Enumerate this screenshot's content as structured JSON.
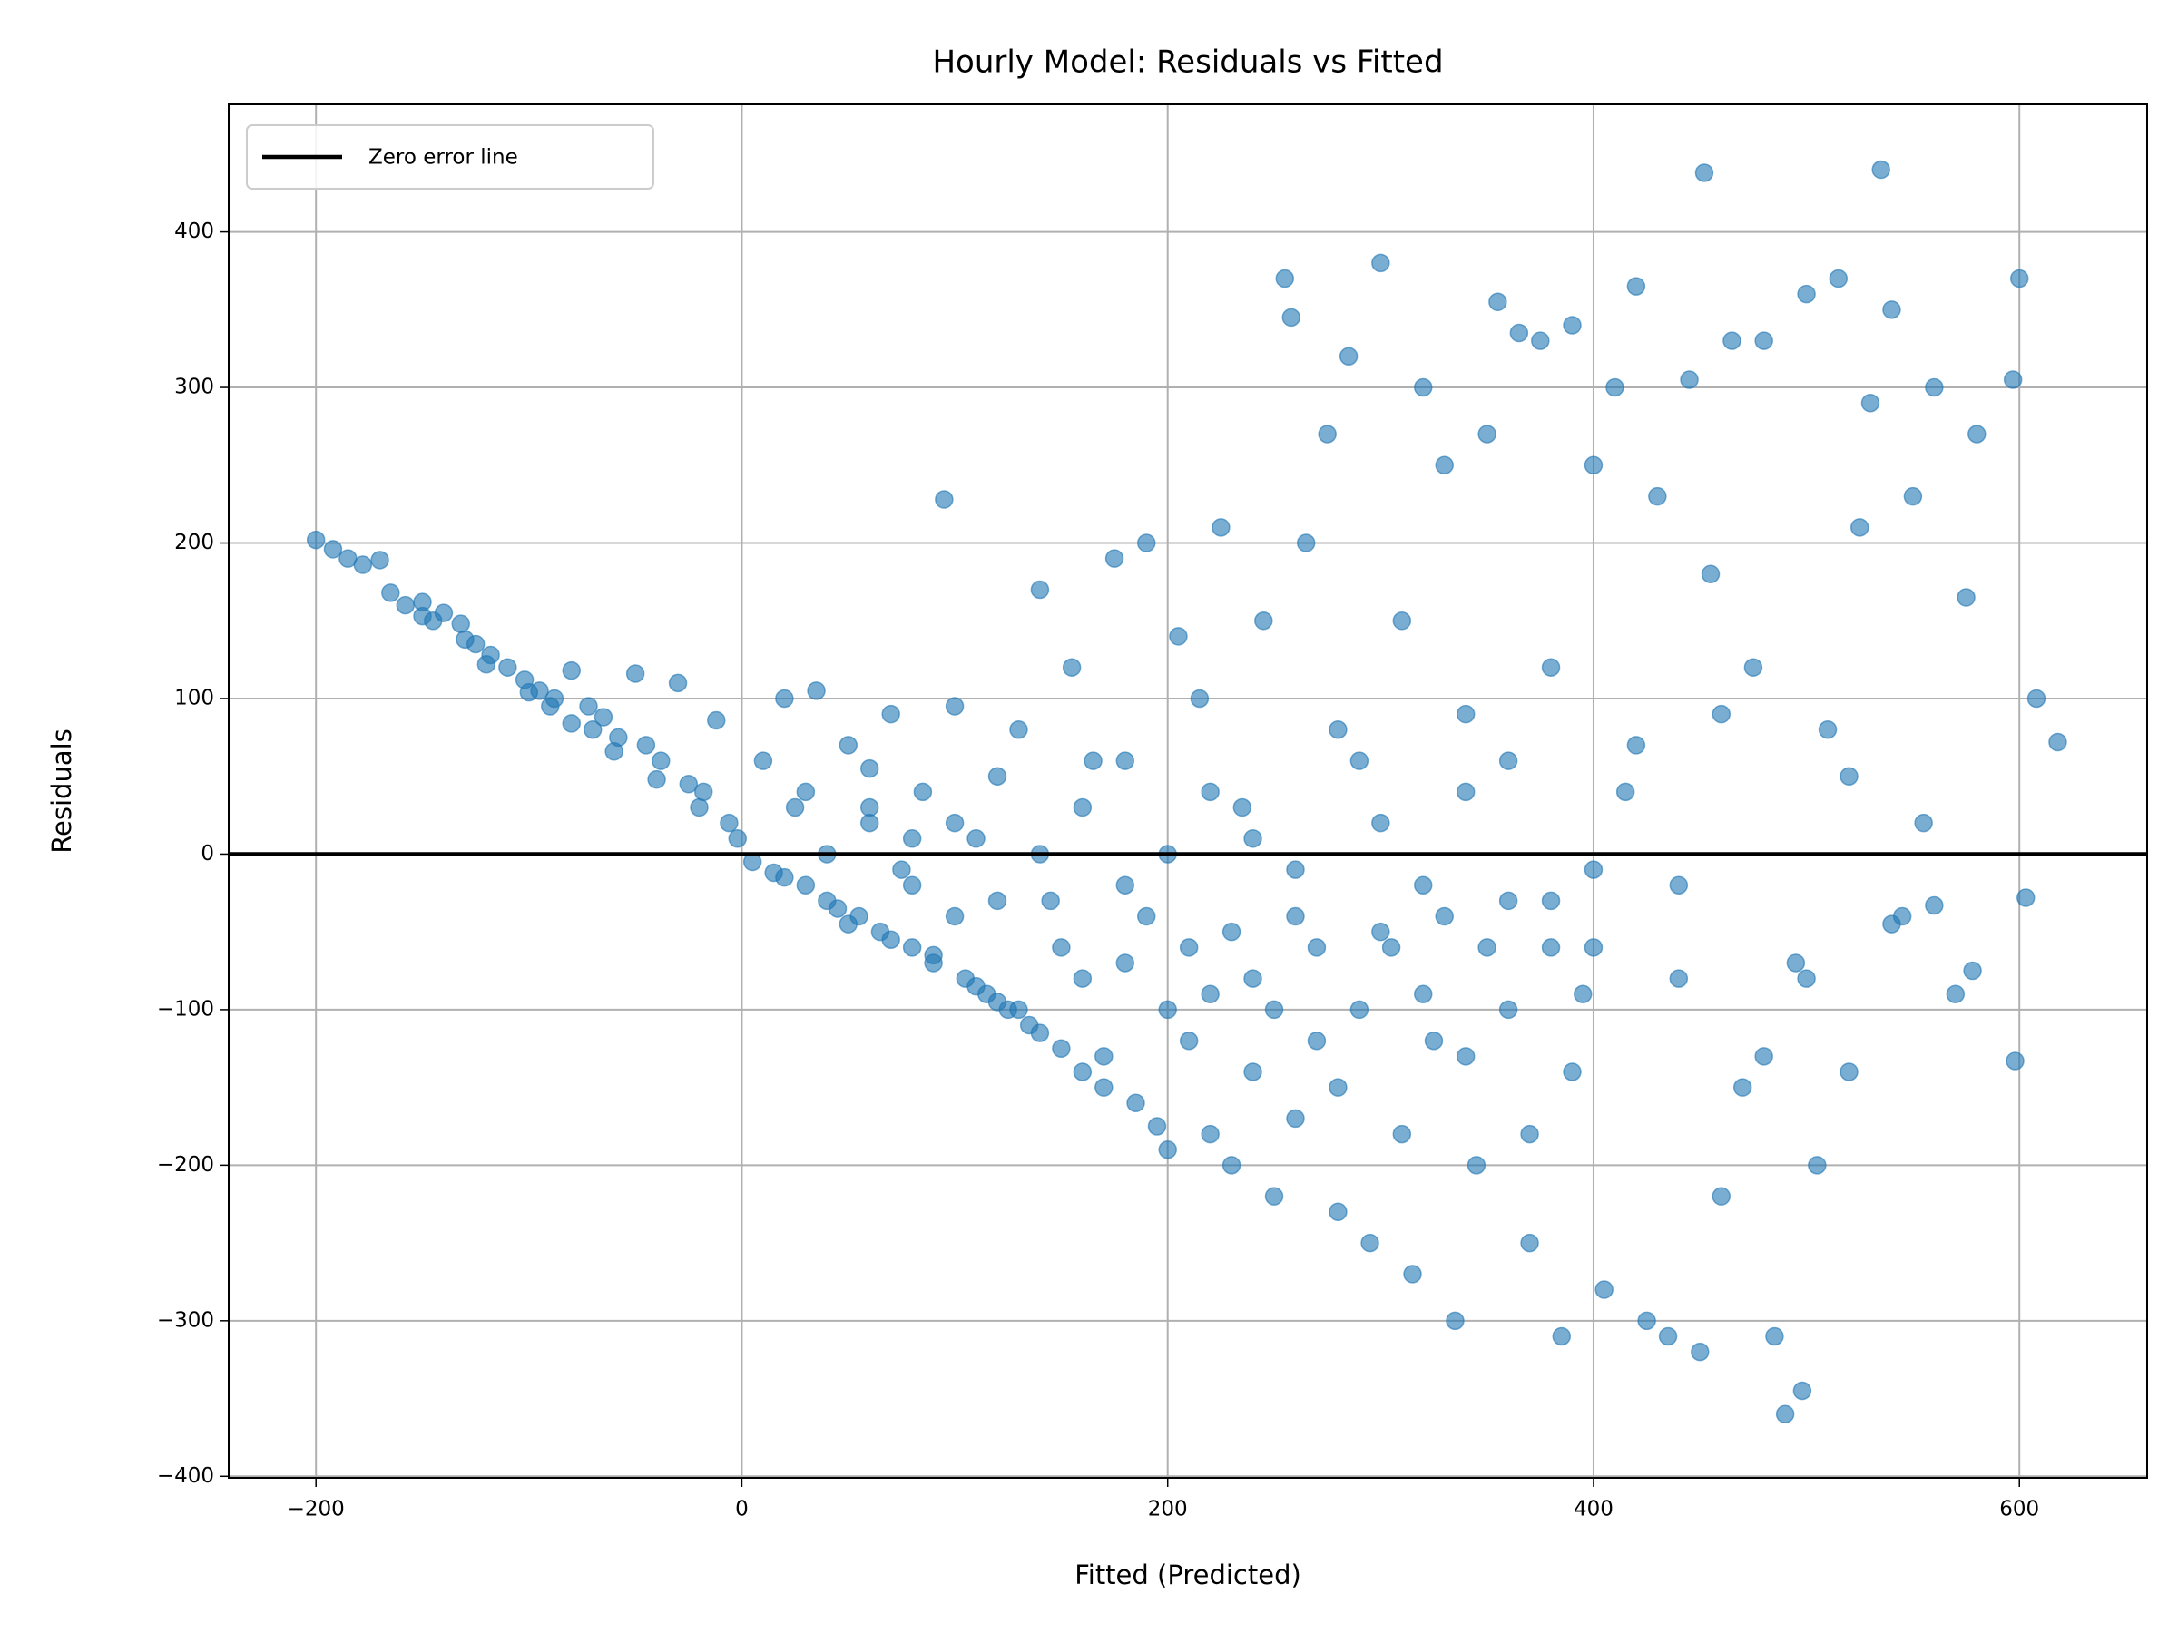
{
  "chart_data": {
    "type": "scatter",
    "title": "Hourly Model: Residuals vs Fitted",
    "x_label": "Fitted (Predicted)",
    "y_label": "Residuals",
    "color": "#1f77b4",
    "grid": true,
    "legend": "upper left",
    "reference_line": {
      "name": "Zero error line",
      "value": 0,
      "color": "#000000"
    },
    "xlim": [
      -241,
      660
    ],
    "ylim": [
      -401,
      482
    ],
    "xticks": [
      {
        "value": -200,
        "label": "−200"
      },
      0,
      200,
      400,
      600
    ],
    "yticks": [
      {
        "value": -400,
        "label": "−400"
      },
      {
        "value": -300,
        "label": "−300"
      },
      {
        "value": -200,
        "label": "−200"
      },
      {
        "value": -100,
        "label": "−100"
      },
      0,
      100,
      200,
      300,
      400
    ],
    "x": [
      -200,
      -192,
      -185,
      -178,
      -170,
      -165,
      -158,
      -150,
      -145,
      -140,
      -132,
      -125,
      -118,
      -110,
      -102,
      -95,
      -88,
      -80,
      -72,
      -65,
      -58,
      -50,
      -45,
      -38,
      -30,
      -25,
      -18,
      -12,
      -6,
      -2,
      -120,
      -100,
      -80,
      -60,
      -40,
      -20,
      -90,
      -70,
      -130,
      -150,
      5,
      10,
      15,
      20,
      25,
      30,
      35,
      40,
      45,
      50,
      55,
      60,
      65,
      70,
      75,
      80,
      85,
      90,
      95,
      100,
      105,
      110,
      115,
      120,
      125,
      130,
      135,
      140,
      145,
      150,
      155,
      160,
      165,
      170,
      175,
      180,
      185,
      190,
      195,
      200,
      205,
      210,
      215,
      220,
      225,
      230,
      235,
      240,
      245,
      250,
      255,
      258,
      260,
      265,
      270,
      275,
      280,
      285,
      290,
      295,
      300,
      305,
      310,
      315,
      320,
      325,
      330,
      335,
      340,
      345,
      350,
      355,
      360,
      365,
      370,
      375,
      380,
      385,
      390,
      395,
      400,
      405,
      410,
      415,
      420,
      425,
      430,
      435,
      440,
      445,
      450,
      452,
      455,
      460,
      465,
      470,
      475,
      480,
      485,
      490,
      495,
      498,
      500,
      505,
      510,
      515,
      520,
      525,
      530,
      535,
      540,
      545,
      550,
      555,
      560,
      570,
      575,
      578,
      580,
      597,
      598,
      600,
      603,
      608,
      618,
      20,
      30,
      40,
      50,
      60,
      70,
      80,
      90,
      100,
      110,
      120,
      130,
      140,
      150,
      160,
      170,
      180,
      190,
      200,
      210,
      220,
      230,
      240,
      250,
      260,
      270,
      280,
      290,
      300,
      310,
      320,
      330,
      340,
      350,
      360,
      370,
      380,
      390,
      400,
      60,
      80,
      100,
      120,
      140,
      160,
      180,
      200,
      220,
      240,
      260,
      280,
      300,
      320,
      340,
      360,
      380,
      400,
      420,
      440,
      460,
      480,
      500,
      520,
      540,
      560
    ],
    "y": [
      202,
      196,
      190,
      186,
      189,
      168,
      160,
      162,
      150,
      155,
      148,
      135,
      128,
      120,
      112,
      105,
      100,
      118,
      95,
      88,
      75,
      116,
      70,
      60,
      110,
      45,
      40,
      86,
      20,
      10,
      122,
      104,
      84,
      66,
      48,
      30,
      95,
      80,
      138,
      153,
      -5,
      60,
      -12,
      100,
      30,
      -20,
      105,
      0,
      -35,
      70,
      -40,
      20,
      -50,
      90,
      -10,
      -60,
      40,
      -70,
      228,
      95,
      -80,
      10,
      -90,
      50,
      -100,
      80,
      -110,
      170,
      -30,
      -125,
      120,
      -140,
      60,
      -150,
      190,
      -20,
      -160,
      200,
      -175,
      -190,
      140,
      -60,
      100,
      -180,
      210,
      -200,
      30,
      -80,
      150,
      -220,
      370,
      345,
      -40,
      200,
      -120,
      270,
      -230,
      320,
      60,
      -250,
      380,
      -60,
      150,
      -270,
      300,
      -120,
      250,
      -300,
      90,
      -200,
      270,
      355,
      -30,
      335,
      -250,
      330,
      120,
      -310,
      340,
      -90,
      250,
      -280,
      300,
      40,
      365,
      -300,
      230,
      -310,
      -80,
      305,
      -320,
      438,
      180,
      -220,
      330,
      -150,
      120,
      330,
      -310,
      -360,
      -70,
      -345,
      360,
      -200,
      80,
      370,
      -140,
      210,
      290,
      440,
      350,
      -40,
      230,
      20,
      300,
      -90,
      165,
      -75,
      270,
      305,
      -133,
      370,
      -28,
      100,
      72,
      -15,
      40,
      -30,
      -45,
      55,
      -55,
      10,
      -65,
      -40,
      -85,
      -95,
      -100,
      -115,
      -60,
      -80,
      -130,
      -70,
      -40,
      -100,
      -120,
      -90,
      -50,
      -140,
      -100,
      -170,
      -60,
      -150,
      -100,
      -50,
      -180,
      -90,
      -40,
      -130,
      -60,
      -100,
      -180,
      -30,
      -140,
      -60,
      30,
      -20,
      20,
      -30,
      0,
      30,
      60,
      0,
      40,
      10,
      -10,
      80,
      20,
      -20,
      40,
      60,
      -60,
      -10,
      70,
      -20,
      90,
      -130,
      -80,
      50,
      -45,
      -33
    ]
  }
}
